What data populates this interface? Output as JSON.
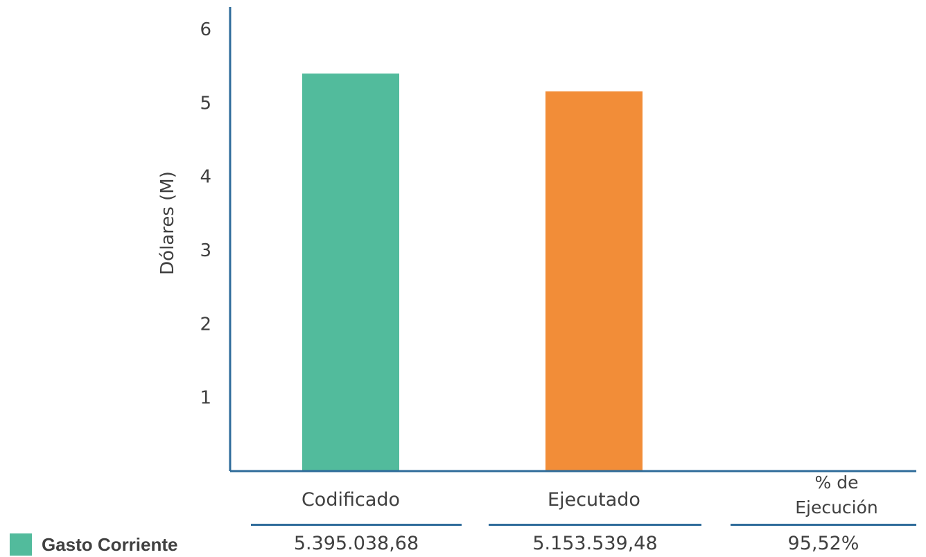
{
  "chart_data": {
    "type": "bar",
    "categories": [
      "Codificado",
      "Ejecutado",
      "% de Ejecución"
    ],
    "series": [
      {
        "name": "Gasto Corriente",
        "values": [
          5.395,
          5.154,
          null
        ],
        "colors": [
          "#52bb9c",
          "#f28d38",
          null
        ]
      }
    ],
    "ylabel": "Dólares (M)",
    "xlabel": "",
    "ylim": [
      0,
      6.3
    ],
    "yticks": [
      1,
      2,
      3,
      4,
      5,
      6
    ],
    "grid": false,
    "axis_color": "#2e6b9a"
  },
  "legend": {
    "label": "Gasto Corriente",
    "color": "#52bb9c"
  },
  "table": {
    "values": [
      "5.395.038,68",
      "5.153.539,48",
      "95,52%"
    ]
  }
}
